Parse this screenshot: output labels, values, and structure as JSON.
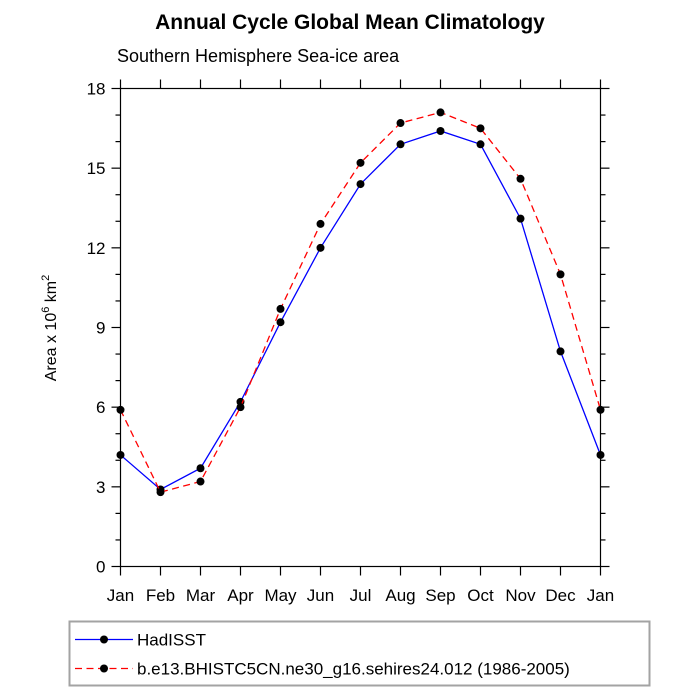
{
  "page": {
    "background_color": "#ffffff"
  },
  "chart_data": {
    "type": "line",
    "title": "Annual Cycle Global Mean Climatology",
    "subtitle": "Southern Hemisphere Sea-ice area",
    "ylabel": "Area x 10⁶ km²",
    "ylabel_parts": [
      {
        "text": "Area x 10",
        "sup": false
      },
      {
        "text": "6",
        "sup": true
      },
      {
        "text": " km",
        "sup": false
      },
      {
        "text": "2",
        "sup": true
      }
    ],
    "categories": [
      "Jan",
      "Feb",
      "Mar",
      "Apr",
      "May",
      "Jun",
      "Jul",
      "Aug",
      "Sep",
      "Oct",
      "Nov",
      "Dec",
      "Jan"
    ],
    "ylim": [
      0,
      18
    ],
    "yticks": [
      0,
      3,
      6,
      9,
      12,
      15,
      18
    ],
    "ytick_labels": [
      "0",
      "3",
      "6",
      "9",
      "12",
      "15",
      "18"
    ],
    "minor_tick_unit": 1,
    "grid": false,
    "frame": true,
    "axis_color": "#000000",
    "marker_shape": "circle",
    "marker_color": "#000000",
    "legend_position": "bottom-left",
    "legend_border_color": "#a3a3a3",
    "series": [
      {
        "name": "HadISST",
        "color": "#0000ff",
        "line_style": "solid",
        "values": [
          4.2,
          2.9,
          3.7,
          6.2,
          9.2,
          12.0,
          14.4,
          15.9,
          16.4,
          15.9,
          13.1,
          8.1,
          4.2
        ]
      },
      {
        "name": "b.e13.BHISTC5CN.ne30_g16.sehires24.012 (1986-2005)",
        "color": "#ff0000",
        "line_style": "dashed",
        "values": [
          5.9,
          2.8,
          3.2,
          6.0,
          9.7,
          12.9,
          15.2,
          16.7,
          17.1,
          16.5,
          14.6,
          11.0,
          5.9
        ]
      }
    ]
  }
}
